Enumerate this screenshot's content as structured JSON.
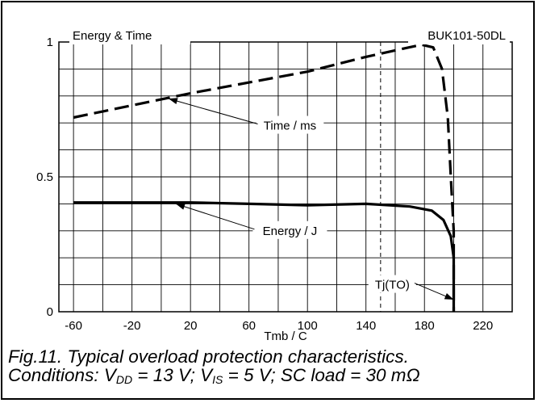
{
  "chart_data": {
    "type": "line",
    "title": "Energy & Time",
    "part_number": "BUK101-50DL",
    "xlabel": "Tmb / C",
    "xlim": [
      -70,
      240
    ],
    "ylim": [
      0,
      1
    ],
    "x_ticks": [
      -60,
      -20,
      20,
      60,
      100,
      140,
      180,
      220
    ],
    "y_ticks": [
      {
        "value": 0,
        "label": "0"
      },
      {
        "value": 0.5,
        "label": "0.5"
      },
      {
        "value": 1,
        "label": "1"
      }
    ],
    "grid": true,
    "series": [
      {
        "name": "Time / ms",
        "style": "dashed",
        "points": [
          [
            -60,
            0.72
          ],
          [
            -20,
            0.765
          ],
          [
            20,
            0.81
          ],
          [
            60,
            0.85
          ],
          [
            100,
            0.89
          ],
          [
            140,
            0.945
          ],
          [
            165,
            0.975
          ],
          [
            178,
            0.99
          ],
          [
            186,
            0.98
          ],
          [
            192,
            0.9
          ],
          [
            196,
            0.72
          ],
          [
            198,
            0.5
          ],
          [
            200,
            0.3
          ],
          [
            200,
            0
          ]
        ]
      },
      {
        "name": "Energy / J",
        "style": "solid",
        "points": [
          [
            -60,
            0.405
          ],
          [
            20,
            0.405
          ],
          [
            60,
            0.4
          ],
          [
            100,
            0.395
          ],
          [
            140,
            0.4
          ],
          [
            170,
            0.39
          ],
          [
            185,
            0.375
          ],
          [
            193,
            0.34
          ],
          [
            198,
            0.28
          ],
          [
            200,
            0.2
          ],
          [
            200,
            0
          ]
        ]
      }
    ],
    "marker_line": {
      "x": 150,
      "style": "dashed"
    },
    "annotations": [
      {
        "text": "Time / ms",
        "x": 88,
        "y": 0.69,
        "arrow_to": [
          5,
          0.79
        ]
      },
      {
        "text": "Energy / J",
        "x": 88,
        "y": 0.3,
        "arrow_to": [
          10,
          0.4
        ]
      },
      {
        "text": "Tj(TO)",
        "x": 158,
        "y": 0.1,
        "arrow_to": [
          200,
          0.045
        ]
      }
    ]
  },
  "caption": {
    "line1": "Fig.11.   Typical overload protection characteristics.",
    "line2_prefix": "Conditions: V",
    "vdd_sub": "DD",
    "vdd_value": " = 13 V; V",
    "vis_sub": "IS",
    "vis_value": " = 5 V; SC load = 30 mΩ"
  }
}
